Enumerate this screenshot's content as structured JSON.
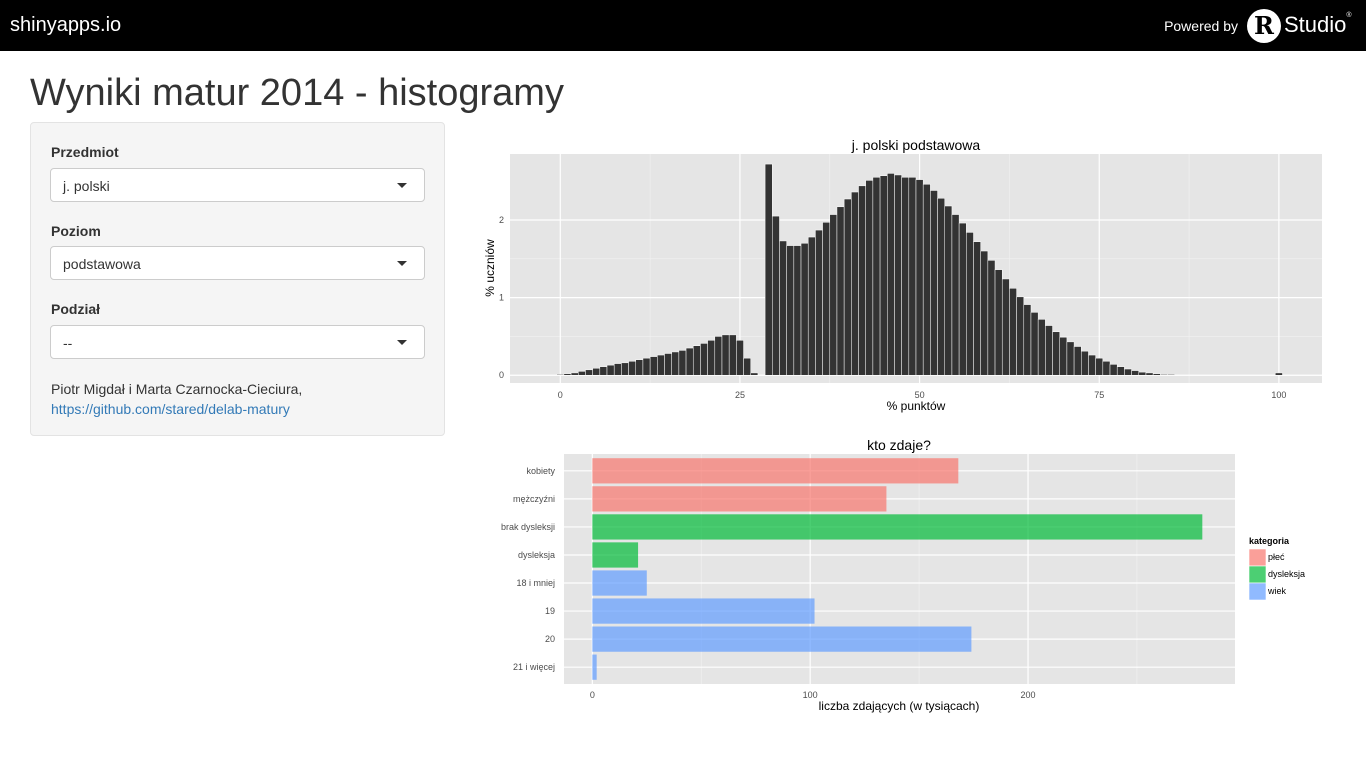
{
  "header": {
    "brand": "shinyapps.io",
    "powered_by": "Powered by",
    "logo_letter": "R",
    "logo_word": "Studio",
    "logo_mark": "®"
  },
  "page_title": "Wyniki matur 2014 - histogramy",
  "sidebar": {
    "subject_label": "Przedmiot",
    "subject_value": "j. polski",
    "level_label": "Poziom",
    "level_value": "podstawowa",
    "split_label": "Podział",
    "split_value": "--",
    "credit_text": "Piotr Migdał i Marta Czarnocka-Cieciura, ",
    "credit_link": "https://github.com/stared/delab-matury"
  },
  "chart_data": [
    {
      "type": "bar",
      "title": "j. polski podstawowa",
      "xlabel": "% punktów",
      "ylabel": "% uczniów",
      "xlim": [
        -7,
        106
      ],
      "ylim": [
        -0.1,
        2.85
      ],
      "xticks": [
        0,
        25,
        50,
        75,
        100
      ],
      "yticks": [
        0,
        1,
        2
      ],
      "bar_color": "#333333",
      "grid": true,
      "x": [
        0,
        1,
        2,
        3,
        4,
        5,
        6,
        7,
        8,
        9,
        10,
        11,
        12,
        13,
        14,
        15,
        16,
        17,
        18,
        19,
        20,
        21,
        22,
        23,
        24,
        25,
        26,
        27,
        28,
        29,
        30,
        31,
        32,
        33,
        34,
        35,
        36,
        37,
        38,
        39,
        40,
        41,
        42,
        43,
        44,
        45,
        46,
        47,
        48,
        49,
        50,
        51,
        52,
        53,
        54,
        55,
        56,
        57,
        58,
        59,
        60,
        61,
        62,
        63,
        64,
        65,
        66,
        67,
        68,
        69,
        70,
        71,
        72,
        73,
        74,
        75,
        76,
        77,
        78,
        79,
        80,
        81,
        82,
        83,
        84,
        85,
        86,
        87,
        88,
        89,
        90,
        91,
        92,
        93,
        94,
        95,
        96,
        97,
        98,
        99,
        100
      ],
      "values": [
        0.01,
        0.02,
        0.03,
        0.05,
        0.07,
        0.09,
        0.11,
        0.13,
        0.15,
        0.16,
        0.18,
        0.2,
        0.22,
        0.24,
        0.26,
        0.28,
        0.3,
        0.32,
        0.35,
        0.38,
        0.41,
        0.45,
        0.5,
        0.52,
        0.52,
        0.45,
        0.22,
        0.03,
        0,
        2.72,
        2.05,
        1.73,
        1.67,
        1.67,
        1.7,
        1.78,
        1.87,
        1.97,
        2.07,
        2.17,
        2.27,
        2.36,
        2.44,
        2.51,
        2.55,
        2.57,
        2.6,
        2.58,
        2.55,
        2.55,
        2.52,
        2.46,
        2.38,
        2.28,
        2.18,
        2.07,
        1.96,
        1.84,
        1.72,
        1.6,
        1.48,
        1.36,
        1.24,
        1.12,
        1.01,
        0.91,
        0.81,
        0.72,
        0.64,
        0.56,
        0.49,
        0.43,
        0.37,
        0.31,
        0.26,
        0.22,
        0.18,
        0.14,
        0.11,
        0.08,
        0.06,
        0.04,
        0.03,
        0.02,
        0.01,
        0.01,
        0,
        0,
        0,
        0,
        0,
        0,
        0,
        0,
        0,
        0,
        0,
        0,
        0,
        0,
        0.03
      ]
    },
    {
      "type": "bar",
      "orientation": "horizontal",
      "title": "kto zdaje?",
      "xlabel": "liczba zdających (w tysiącach)",
      "ylabel": "",
      "xlim": [
        -13,
        295
      ],
      "xticks": [
        0,
        100,
        200
      ],
      "grid": true,
      "categories": [
        "kobiety",
        "mężczyźni",
        "brak dysleksji",
        "dysleksja",
        "18 i mniej",
        "19",
        "20",
        "21 i więcej"
      ],
      "values": [
        168,
        135,
        280,
        21,
        25,
        102,
        174,
        2
      ],
      "group": [
        "płeć",
        "płeć",
        "dysleksja",
        "dysleksja",
        "wiek",
        "wiek",
        "wiek",
        "wiek"
      ],
      "legend": {
        "title": "kategoria",
        "position": "right",
        "items": [
          {
            "label": "płeć",
            "color": "#f8766d"
          },
          {
            "label": "dysleksja",
            "color": "#00ba38"
          },
          {
            "label": "wiek",
            "color": "#619cff"
          }
        ]
      }
    }
  ]
}
